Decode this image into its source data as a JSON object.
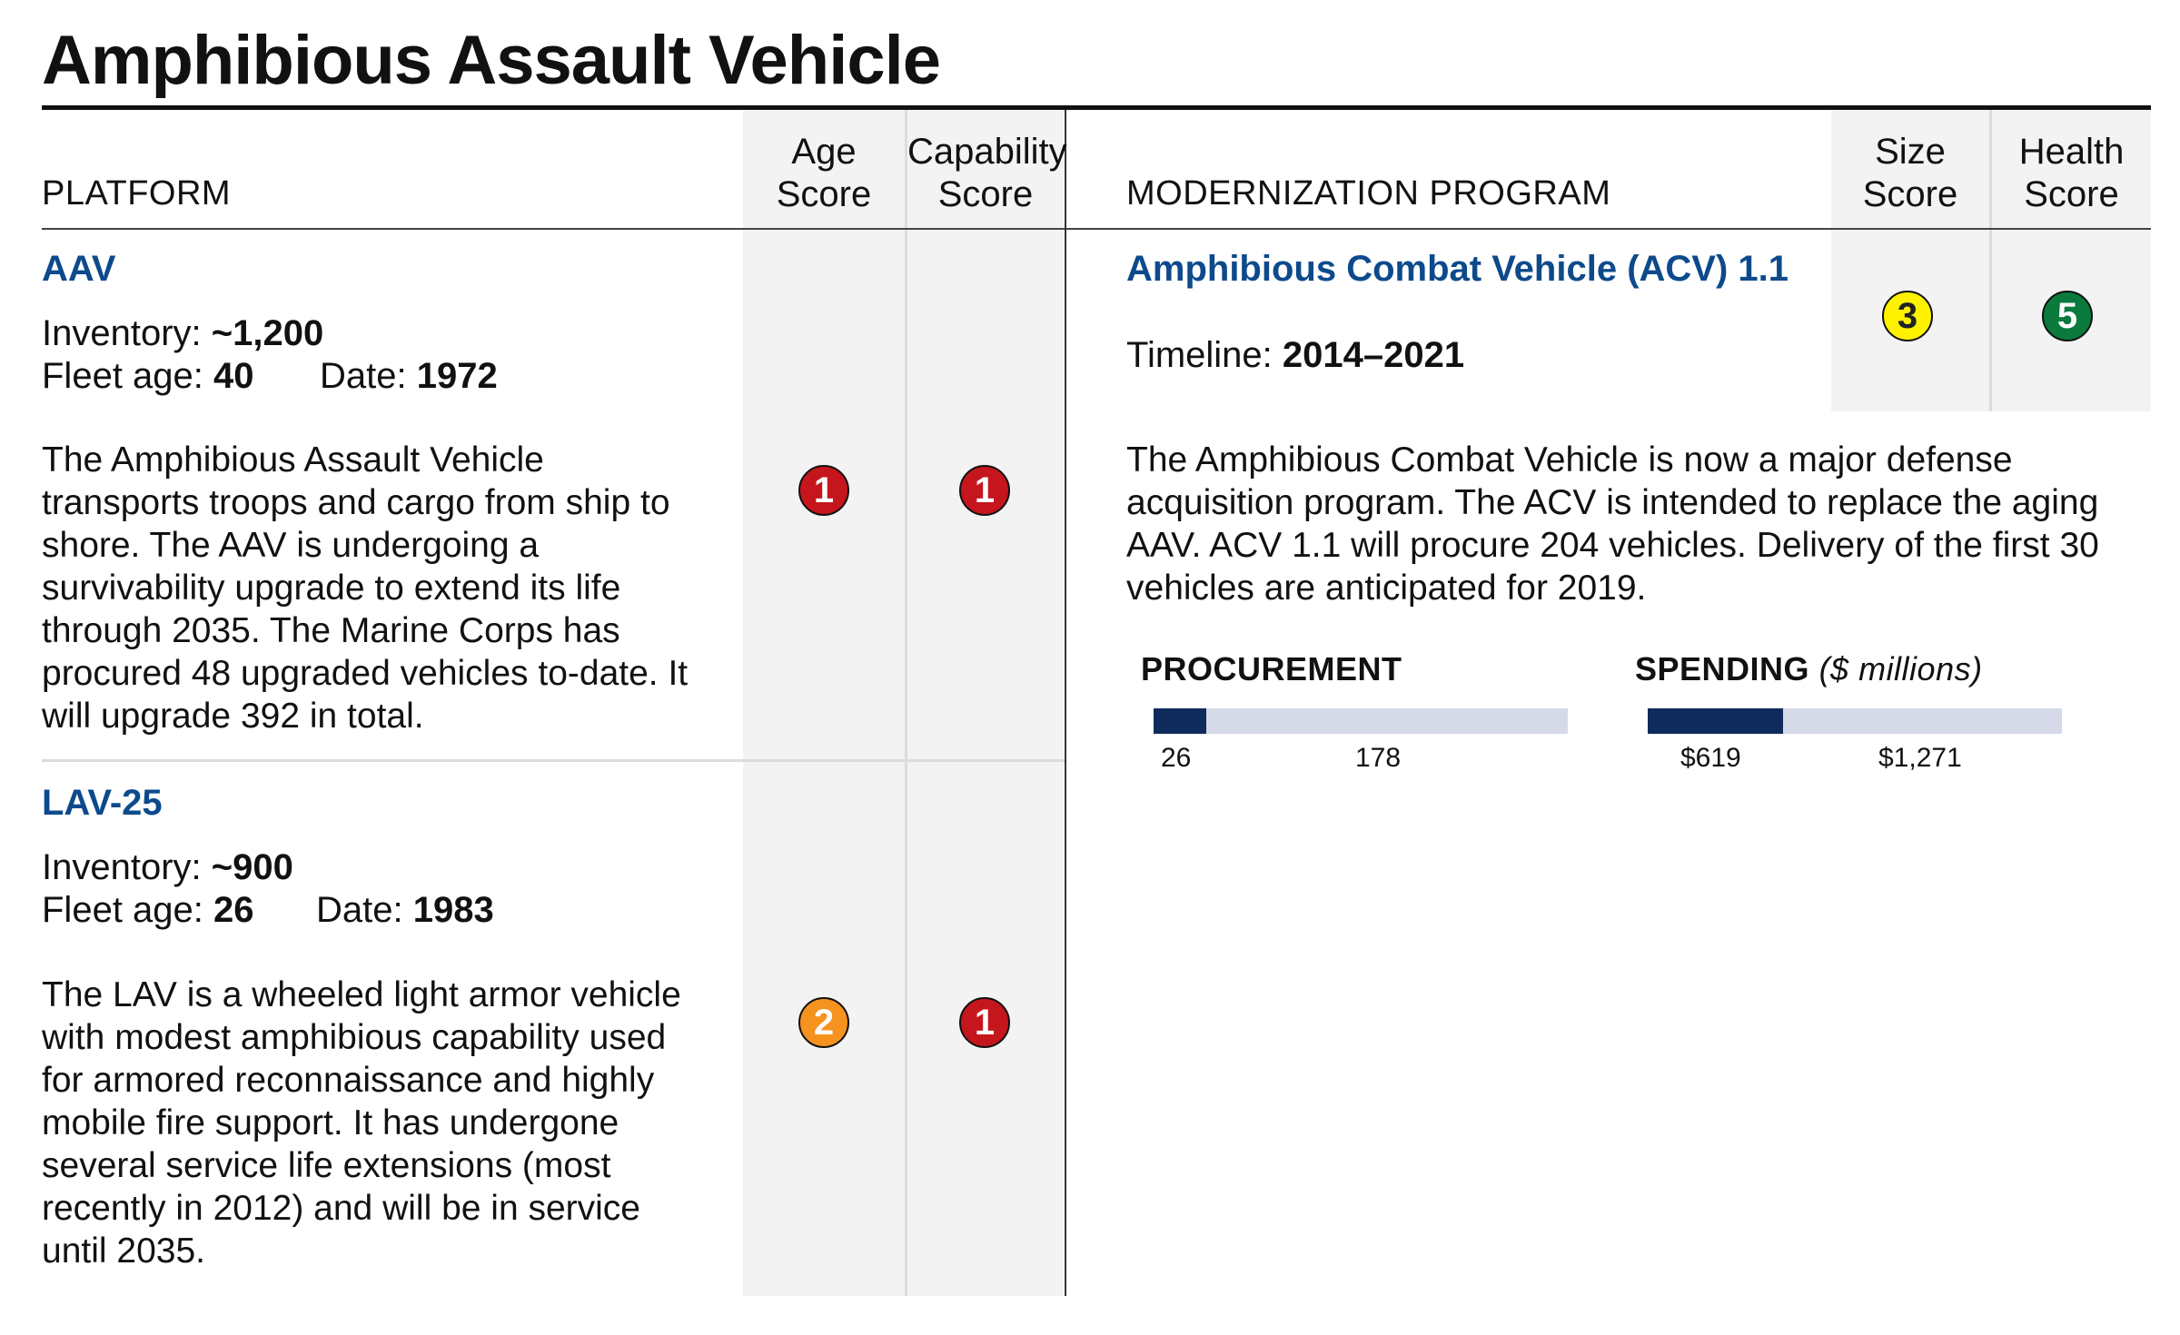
{
  "title": "Amphibious Assault Vehicle",
  "headers": {
    "platform": "PLATFORM",
    "age_score": [
      "Age",
      "Score"
    ],
    "capability_score": [
      "Capability",
      "Score"
    ],
    "modernization": "MODERNIZATION PROGRAM",
    "size_score": [
      "Size",
      "Score"
    ],
    "health_score": [
      "Health",
      "Score"
    ]
  },
  "platforms": [
    {
      "name": "AAV",
      "inventory_label": "Inventory: ",
      "inventory": "~1,200",
      "fleet_age_label": "Fleet age: ",
      "fleet_age": "40",
      "date_label": "Date: ",
      "date": "1972",
      "description": "The Amphibious Assault Vehicle transports troops and cargo from ship to shore. The AAV is undergoing a survivability upgrade to extend its life through 2035. The Marine Corps has procured 48 upgraded vehicles to-date. It will upgrade 392 in total.",
      "age_score": "1",
      "age_color": "#c4161c",
      "capability_score": "1",
      "capability_color": "#c4161c"
    },
    {
      "name": "LAV-25",
      "inventory_label": "Inventory: ",
      "inventory": "~900",
      "fleet_age_label": "Fleet age: ",
      "fleet_age": "26",
      "date_label": "Date: ",
      "date": "1983",
      "description": "The LAV is a wheeled light armor vehicle with modest amphibious capability used for armored reconnaissance and highly mobile fire support. It has undergone several service life extensions (most recently in 2012) and will be in service until 2035.",
      "age_score": "2",
      "age_color": "#f6921e",
      "capability_score": "1",
      "capability_color": "#c4161c"
    }
  ],
  "program": {
    "name": "Amphibious Combat Vehicle (ACV) 1.1",
    "timeline_label": "Timeline: ",
    "timeline": "2014–2021",
    "size_score": "3",
    "size_color": "#fff200",
    "health_score": "5",
    "health_color": "#0a7a3d",
    "description": "The Amphibious Combat Vehicle is now a major defense acquisition program. The ACV is intended to replace the aging AAV. ACV 1.1 will procure 204 vehicles. Delivery of the first 30 vehicles are anticipated for 2019."
  },
  "chart_data": [
    {
      "type": "bar",
      "title": "PROCUREMENT",
      "units": "",
      "values": [
        26,
        178
      ],
      "labels": [
        "26",
        "178"
      ],
      "total": 204,
      "colors": [
        "#0e2b5c",
        "#d6dae8"
      ]
    },
    {
      "type": "bar",
      "title": "SPENDING",
      "units": "($ millions)",
      "values": [
        619,
        1271
      ],
      "labels": [
        "$619",
        "$1,271"
      ],
      "total": 1890,
      "colors": [
        "#0e2b5c",
        "#d6dae8"
      ]
    }
  ]
}
